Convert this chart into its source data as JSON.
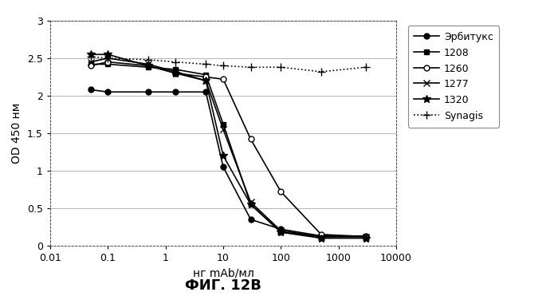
{
  "series": {
    "Эрбитукс": {
      "x": [
        0.05,
        0.1,
        0.5,
        1.5,
        5,
        10,
        30,
        100,
        500,
        3000
      ],
      "y": [
        2.08,
        2.05,
        2.05,
        2.05,
        2.05,
        1.05,
        0.35,
        0.22,
        0.13,
        0.13
      ],
      "marker": "o",
      "linestyle": "-",
      "markersize": 5,
      "markerfacecolor": "#000000",
      "markeredgecolor": "#000000"
    },
    "1208": {
      "x": [
        0.05,
        0.1,
        0.5,
        1.5,
        5,
        10,
        30,
        100,
        500,
        3000
      ],
      "y": [
        2.42,
        2.42,
        2.38,
        2.35,
        2.28,
        1.62,
        0.55,
        0.18,
        0.12,
        0.12
      ],
      "marker": "s",
      "linestyle": "-",
      "markersize": 5,
      "markerfacecolor": "#000000",
      "markeredgecolor": "#000000"
    },
    "1260": {
      "x": [
        0.05,
        0.1,
        0.5,
        1.5,
        5,
        10,
        30,
        100,
        500,
        3000
      ],
      "y": [
        2.4,
        2.45,
        2.4,
        2.3,
        2.25,
        2.22,
        1.42,
        0.72,
        0.15,
        0.12
      ],
      "marker": "o",
      "linestyle": "-",
      "markersize": 5,
      "markerfacecolor": "#ffffff",
      "markeredgecolor": "#000000"
    },
    "1277": {
      "x": [
        0.05,
        0.1,
        0.5,
        1.5,
        5,
        10,
        30,
        100,
        500,
        3000
      ],
      "y": [
        2.45,
        2.5,
        2.42,
        2.32,
        2.2,
        1.55,
        0.58,
        0.2,
        0.12,
        0.12
      ],
      "marker": "x",
      "linestyle": "-",
      "markersize": 6,
      "markerfacecolor": "#000000",
      "markeredgecolor": "#000000"
    },
    "1320": {
      "x": [
        0.05,
        0.1,
        0.5,
        1.5,
        5,
        10,
        30,
        100,
        500,
        3000
      ],
      "y": [
        2.55,
        2.55,
        2.4,
        2.3,
        2.2,
        1.2,
        0.55,
        0.18,
        0.1,
        0.1
      ],
      "marker": "*",
      "linestyle": "-",
      "markersize": 7,
      "markerfacecolor": "#000000",
      "markeredgecolor": "#000000"
    },
    "Synagis": {
      "x": [
        0.05,
        0.1,
        0.5,
        1.5,
        5,
        10,
        30,
        100,
        500,
        3000
      ],
      "y": [
        2.52,
        2.5,
        2.48,
        2.45,
        2.42,
        2.4,
        2.38,
        2.38,
        2.32,
        2.38
      ],
      "marker": "+",
      "linestyle": ":",
      "markersize": 7,
      "markerfacecolor": "#000000",
      "markeredgecolor": "#000000"
    }
  },
  "xlabel": "нг mAb/мл",
  "ylabel": "OD 450 нм",
  "xlim": [
    0.01,
    10000
  ],
  "ylim": [
    0,
    3
  ],
  "yticks": [
    0,
    0.5,
    1,
    1.5,
    2,
    2.5,
    3
  ],
  "xtick_positions": [
    0.01,
    0.1,
    1,
    10,
    100,
    1000,
    10000
  ],
  "xtick_labels": [
    "0.01",
    "0.1",
    "1",
    "10",
    "100",
    "1000",
    "10000"
  ],
  "caption": "ФИГ. 12B",
  "legend_order": [
    "Эрбитукс",
    "1208",
    "1260",
    "1277",
    "1320",
    "Synagis"
  ],
  "background_color": "#ffffff",
  "grid_color": "#999999",
  "line_color": "#000000",
  "linewidth": 1.2
}
